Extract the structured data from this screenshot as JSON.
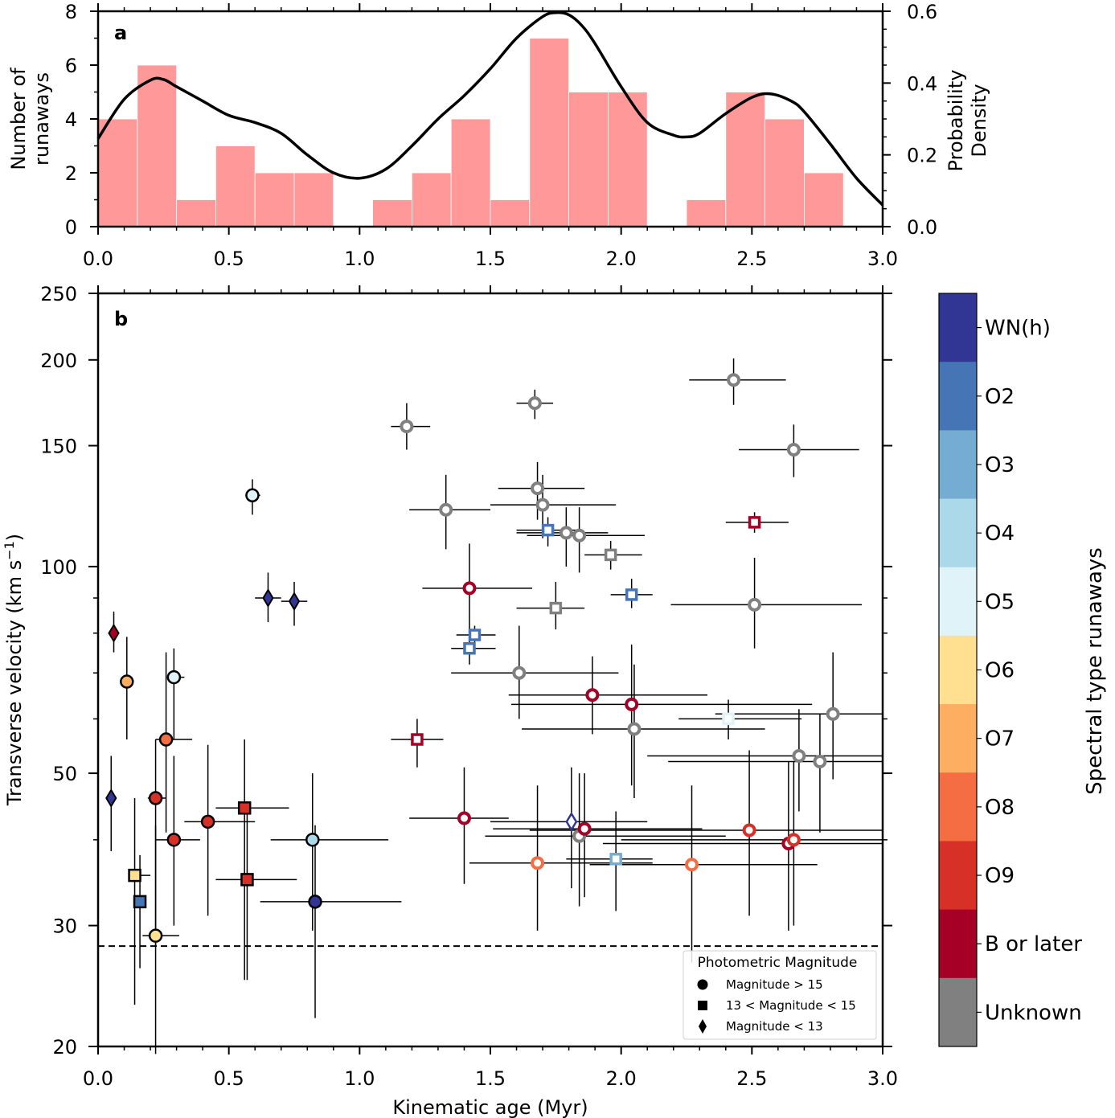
{
  "chart_data": [
    {
      "panel": "a",
      "type": "bar",
      "subtype": "histogram_with_kde",
      "panel_label": "a",
      "xlabel": "",
      "ylabel": "Number of\nrunaways",
      "ylabel_lines": [
        "Number of",
        "runaways"
      ],
      "y2label_lines": [
        "Probability",
        "Density"
      ],
      "xlim": [
        0.0,
        3.0
      ],
      "ylim": [
        0,
        8
      ],
      "y2lim": [
        0.0,
        0.6
      ],
      "xticks": [
        "0.0",
        "0.5",
        "1.0",
        "1.5",
        "2.0",
        "2.5",
        "3.0"
      ],
      "yticks": [
        "0",
        "2",
        "4",
        "6",
        "8"
      ],
      "y2ticks": [
        "0.0",
        "0.2",
        "0.4",
        "0.6"
      ],
      "bar_color": "#ff9999",
      "bin_width": 0.15,
      "bin_edges_start": 0.0,
      "counts": [
        4,
        6,
        1,
        3,
        2,
        2,
        0,
        1,
        2,
        4,
        1,
        7,
        5,
        5,
        0,
        1,
        5,
        4,
        2,
        0
      ],
      "kde": {
        "x": [
          0.0,
          0.1,
          0.2,
          0.25,
          0.3,
          0.4,
          0.5,
          0.6,
          0.7,
          0.8,
          0.9,
          1.0,
          1.1,
          1.2,
          1.3,
          1.4,
          1.5,
          1.6,
          1.7,
          1.75,
          1.8,
          1.85,
          1.9,
          2.0,
          2.1,
          2.2,
          2.25,
          2.3,
          2.4,
          2.5,
          2.57,
          2.65,
          2.7,
          2.8,
          2.9,
          3.0
        ],
        "density": [
          0.245,
          0.355,
          0.408,
          0.41,
          0.39,
          0.35,
          0.31,
          0.29,
          0.26,
          0.2,
          0.15,
          0.135,
          0.16,
          0.225,
          0.3,
          0.365,
          0.44,
          0.525,
          0.585,
          0.596,
          0.59,
          0.56,
          0.51,
          0.39,
          0.29,
          0.255,
          0.25,
          0.26,
          0.315,
          0.36,
          0.37,
          0.35,
          0.32,
          0.23,
          0.135,
          0.06
        ]
      }
    },
    {
      "panel": "b",
      "type": "scatter",
      "panel_label": "b",
      "xlabel": "Kinematic age (Myr)",
      "ylabel": "Transverse velocity (km s",
      "ylabel_sup": "−1",
      "ylabel_end": ")",
      "xlim": [
        0.0,
        3.0
      ],
      "ylim": [
        20,
        250
      ],
      "yscale": "log",
      "xticks": [
        "0.0",
        "0.5",
        "1.0",
        "1.5",
        "2.0",
        "2.5",
        "3.0"
      ],
      "yticks": [
        20,
        30,
        50,
        100,
        150,
        200,
        250
      ],
      "ytick_labels": [
        "20",
        "30",
        "50",
        "100",
        "150",
        "200",
        "250"
      ],
      "threshold_line": {
        "y": 28,
        "style": "dashed"
      },
      "legend": {
        "title": "Photometric Magnitude",
        "location": "lower-right",
        "entries": [
          {
            "marker": "circle",
            "label": "Magnitude > 15"
          },
          {
            "marker": "square",
            "label": "13 < Magnitude < 15"
          },
          {
            "marker": "diamond",
            "label": "Magnitude < 13"
          }
        ]
      },
      "colorbar": {
        "title": "Spectral type runaways",
        "categories": [
          {
            "label": "WN(h)",
            "color": "#313695"
          },
          {
            "label": "O2",
            "color": "#4575b4"
          },
          {
            "label": "O3",
            "color": "#74add1"
          },
          {
            "label": "O4",
            "color": "#abd9e9"
          },
          {
            "label": "O5",
            "color": "#e0f3f8"
          },
          {
            "label": "O6",
            "color": "#fee090"
          },
          {
            "label": "O7",
            "color": "#fdae61"
          },
          {
            "label": "O8",
            "color": "#f46d43"
          },
          {
            "label": "O9",
            "color": "#d73027"
          },
          {
            "label": "B or later",
            "color": "#a50026"
          },
          {
            "label": "Unknown",
            "color": "#808080"
          }
        ]
      },
      "note": "filled markers have black edges; hollow markers are colored-edge with white fill",
      "points": [
        {
          "x": 0.06,
          "y": 80,
          "xerr": [
            0.0,
            0.0
          ],
          "yerr": [
            75,
            86
          ],
          "marker": "diamond",
          "type": "B or later",
          "filled": true
        },
        {
          "x": 0.05,
          "y": 46,
          "xerr": [
            0.0,
            0.0
          ],
          "yerr": [
            38.5,
            53
          ],
          "marker": "diamond",
          "type": "WN(h)",
          "filled": true
        },
        {
          "x": 0.11,
          "y": 68,
          "xerr": [
            0.0,
            0.0
          ],
          "yerr": [
            56,
            79
          ],
          "marker": "circle",
          "type": "O7",
          "filled": true
        },
        {
          "x": 0.14,
          "y": 35.5,
          "xerr": [
            0.12,
            0.2
          ],
          "yerr": [
            23,
            46
          ],
          "marker": "square",
          "type": "O6",
          "filled": true
        },
        {
          "x": 0.16,
          "y": 32.5,
          "xerr": [
            0.15,
            0.18
          ],
          "yerr": [
            26,
            38
          ],
          "marker": "square",
          "type": "O2",
          "filled": true
        },
        {
          "x": 0.22,
          "y": 29,
          "xerr": [
            0.17,
            0.31
          ],
          "yerr": [
            19.5,
            42
          ],
          "marker": "circle",
          "type": "O6",
          "filled": true
        },
        {
          "x": 0.22,
          "y": 46,
          "xerr": [
            0.19,
            0.26
          ],
          "yerr": [
            28,
            56
          ],
          "marker": "circle",
          "type": "O9",
          "filled": true
        },
        {
          "x": 0.26,
          "y": 56,
          "xerr": [
            0.22,
            0.36
          ],
          "yerr": [
            41,
            75
          ],
          "marker": "circle",
          "type": "O8",
          "filled": true
        },
        {
          "x": 0.29,
          "y": 69,
          "xerr": [
            0.28,
            0.33
          ],
          "yerr": [
            56,
            76
          ],
          "marker": "circle",
          "type": "O5",
          "filled": true
        },
        {
          "x": 0.29,
          "y": 40,
          "xerr": [
            0.22,
            0.39
          ],
          "yerr": [
            30,
            53
          ],
          "marker": "circle",
          "type": "O9",
          "filled": true
        },
        {
          "x": 0.42,
          "y": 42.5,
          "xerr": [
            0.33,
            0.6
          ],
          "yerr": [
            31,
            55
          ],
          "marker": "circle",
          "type": "O9",
          "filled": true
        },
        {
          "x": 0.56,
          "y": 44.5,
          "xerr": [
            0.45,
            0.73
          ],
          "yerr": [
            25,
            56
          ],
          "marker": "square",
          "type": "O9",
          "filled": true
        },
        {
          "x": 0.57,
          "y": 35,
          "xerr": [
            0.45,
            0.76
          ],
          "yerr": [
            25,
            44
          ],
          "marker": "square",
          "type": "O9",
          "filled": true
        },
        {
          "x": 0.59,
          "y": 127,
          "xerr": [
            0.57,
            0.62
          ],
          "yerr": [
            119,
            134
          ],
          "marker": "circle",
          "type": "O5",
          "filled": true
        },
        {
          "x": 0.65,
          "y": 90,
          "xerr": [
            0.6,
            0.7
          ],
          "yerr": [
            83,
            98
          ],
          "marker": "diamond",
          "type": "WN(h)",
          "filled": true
        },
        {
          "x": 0.75,
          "y": 89,
          "xerr": [
            0.7,
            0.8
          ],
          "yerr": [
            82,
            95
          ],
          "marker": "diamond",
          "type": "WN(h)",
          "filled": true
        },
        {
          "x": 0.82,
          "y": 40,
          "xerr": [
            0.66,
            1.11
          ],
          "yerr": [
            29.5,
            50
          ],
          "marker": "circle",
          "type": "O4",
          "filled": true
        },
        {
          "x": 0.83,
          "y": 32.5,
          "xerr": [
            0.62,
            1.16
          ],
          "yerr": [
            22,
            42
          ],
          "marker": "circle",
          "type": "WN(h)",
          "filled": true
        },
        {
          "x": 1.18,
          "y": 160,
          "xerr": [
            1.12,
            1.27
          ],
          "yerr": [
            148,
            173
          ],
          "marker": "circle",
          "type": "Unknown",
          "filled": false
        },
        {
          "x": 1.22,
          "y": 56,
          "xerr": [
            1.12,
            1.32
          ],
          "yerr": [
            51,
            60
          ],
          "marker": "square",
          "type": "B or later",
          "filled": false
        },
        {
          "x": 1.33,
          "y": 121,
          "xerr": [
            1.19,
            1.5
          ],
          "yerr": [
            106,
            136
          ],
          "marker": "circle",
          "type": "Unknown",
          "filled": false
        },
        {
          "x": 1.4,
          "y": 43,
          "xerr": [
            1.19,
            1.57
          ],
          "yerr": [
            34.5,
            51
          ],
          "marker": "circle",
          "type": "B or later",
          "filled": false
        },
        {
          "x": 1.42,
          "y": 93,
          "xerr": [
            1.24,
            1.66
          ],
          "yerr": [
            78,
            108
          ],
          "marker": "circle",
          "type": "B or later",
          "filled": false
        },
        {
          "x": 1.42,
          "y": 76,
          "xerr": [
            1.35,
            1.52
          ],
          "yerr": [
            72,
            80
          ],
          "marker": "square",
          "type": "O2",
          "filled": false
        },
        {
          "x": 1.44,
          "y": 79.5,
          "xerr": [
            1.37,
            1.52
          ],
          "yerr": [
            76,
            82
          ],
          "marker": "square",
          "type": "O2",
          "filled": false
        },
        {
          "x": 1.61,
          "y": 70,
          "xerr": [
            1.35,
            1.99
          ],
          "yerr": [
            60,
            82
          ],
          "marker": "circle",
          "type": "Unknown",
          "filled": false
        },
        {
          "x": 1.67,
          "y": 173,
          "xerr": [
            1.6,
            1.74
          ],
          "yerr": [
            164,
            181
          ],
          "marker": "circle",
          "type": "Unknown",
          "filled": false
        },
        {
          "x": 1.68,
          "y": 37,
          "xerr": [
            1.42,
            2.12
          ],
          "yerr": [
            29.5,
            48
          ],
          "marker": "circle",
          "type": "O8",
          "filled": false
        },
        {
          "x": 1.68,
          "y": 130,
          "xerr": [
            1.53,
            1.86
          ],
          "yerr": [
            117,
            142
          ],
          "marker": "circle",
          "type": "Unknown",
          "filled": false
        },
        {
          "x": 1.7,
          "y": 123,
          "xerr": [
            1.5,
            1.98
          ],
          "yerr": [
            110,
            136
          ],
          "marker": "circle",
          "type": "Unknown",
          "filled": false
        },
        {
          "x": 1.72,
          "y": 113,
          "xerr": [
            1.6,
            1.85
          ],
          "yerr": [
            107,
            118
          ],
          "marker": "square",
          "type": "O2",
          "filled": false
        },
        {
          "x": 1.75,
          "y": 87,
          "xerr": [
            1.6,
            1.86
          ],
          "yerr": [
            81,
            95
          ],
          "marker": "square",
          "type": "Unknown",
          "filled": false
        },
        {
          "x": 1.79,
          "y": 112,
          "xerr": [
            1.6,
            1.95
          ],
          "yerr": [
            100,
            122
          ],
          "marker": "circle",
          "type": "Unknown",
          "filled": false
        },
        {
          "x": 1.81,
          "y": 42.5,
          "xerr": [
            1.5,
            2.1
          ],
          "yerr": [
            34,
            51
          ],
          "marker": "diamond",
          "type": "WN(h)",
          "filled": false
        },
        {
          "x": 1.84,
          "y": 111,
          "xerr": [
            1.64,
            2.09
          ],
          "yerr": [
            98,
            122
          ],
          "marker": "circle",
          "type": "Unknown",
          "filled": false
        },
        {
          "x": 1.84,
          "y": 40.5,
          "xerr": [
            1.48,
            2.4
          ],
          "yerr": [
            32,
            50
          ],
          "marker": "circle",
          "type": "Unknown",
          "filled": false
        },
        {
          "x": 1.86,
          "y": 41.5,
          "xerr": [
            1.51,
            2.31
          ],
          "yerr": [
            33,
            50
          ],
          "marker": "circle",
          "type": "B or later",
          "filled": false
        },
        {
          "x": 1.89,
          "y": 65,
          "xerr": [
            1.57,
            2.33
          ],
          "yerr": [
            57,
            74
          ],
          "marker": "circle",
          "type": "B or later",
          "filled": false
        },
        {
          "x": 1.96,
          "y": 104,
          "xerr": [
            1.86,
            2.08
          ],
          "yerr": [
            99,
            109
          ],
          "marker": "square",
          "type": "Unknown",
          "filled": false
        },
        {
          "x": 1.98,
          "y": 37.5,
          "xerr": [
            1.79,
            2.12
          ],
          "yerr": [
            31.5,
            44
          ],
          "marker": "square",
          "type": "O3",
          "filled": false
        },
        {
          "x": 2.04,
          "y": 91,
          "xerr": [
            1.96,
            2.12
          ],
          "yerr": [
            87,
            96
          ],
          "marker": "square",
          "type": "O2",
          "filled": false
        },
        {
          "x": 2.04,
          "y": 63,
          "xerr": [
            1.58,
            2.73
          ],
          "yerr": [
            48,
            77
          ],
          "marker": "circle",
          "type": "B or later",
          "filled": false
        },
        {
          "x": 2.05,
          "y": 58,
          "xerr": [
            1.62,
            2.55
          ],
          "yerr": [
            46,
            72
          ],
          "marker": "circle",
          "type": "Unknown",
          "filled": false
        },
        {
          "x": 2.27,
          "y": 36.8,
          "xerr": [
            1.88,
            2.75
          ],
          "yerr": [
            26.5,
            48
          ],
          "marker": "circle",
          "type": "O8",
          "filled": false
        },
        {
          "x": 2.41,
          "y": 60,
          "xerr": [
            2.22,
            2.69
          ],
          "yerr": [
            56,
            64
          ],
          "marker": "square",
          "type": "O5",
          "filled": false
        },
        {
          "x": 2.43,
          "y": 187,
          "xerr": [
            2.26,
            2.63
          ],
          "yerr": [
            172,
            201
          ],
          "marker": "circle",
          "type": "Unknown",
          "filled": false
        },
        {
          "x": 2.49,
          "y": 41.3,
          "xerr": [
            1.65,
            3.0
          ],
          "yerr": [
            31,
            54
          ],
          "marker": "circle",
          "type": "O9",
          "filled": false
        },
        {
          "x": 2.51,
          "y": 116,
          "xerr": [
            2.4,
            2.64
          ],
          "yerr": [
            112,
            120
          ],
          "marker": "square",
          "type": "B or later",
          "filled": false
        },
        {
          "x": 2.51,
          "y": 88,
          "xerr": [
            2.19,
            2.92
          ],
          "yerr": [
            76,
            103
          ],
          "marker": "circle",
          "type": "Unknown",
          "filled": false
        },
        {
          "x": 2.64,
          "y": 39.5,
          "xerr": [
            1.93,
            3.0
          ],
          "yerr": [
            29.5,
            52
          ],
          "marker": "circle",
          "type": "B or later",
          "filled": false
        },
        {
          "x": 2.66,
          "y": 40,
          "xerr": [
            2.0,
            3.0
          ],
          "yerr": [
            30,
            52
          ],
          "marker": "circle",
          "type": "O9",
          "filled": false
        },
        {
          "x": 2.66,
          "y": 148,
          "xerr": [
            2.45,
            2.91
          ],
          "yerr": [
            135,
            161
          ],
          "marker": "circle",
          "type": "Unknown",
          "filled": false
        },
        {
          "x": 2.68,
          "y": 53,
          "xerr": [
            2.1,
            3.0
          ],
          "yerr": [
            44,
            62
          ],
          "marker": "circle",
          "type": "Unknown",
          "filled": false
        },
        {
          "x": 2.76,
          "y": 52,
          "xerr": [
            2.18,
            3.0
          ],
          "yerr": [
            41,
            61
          ],
          "marker": "circle",
          "type": "Unknown",
          "filled": false
        },
        {
          "x": 2.81,
          "y": 61,
          "xerr": [
            2.36,
            3.0
          ],
          "yerr": [
            49,
            75
          ],
          "marker": "circle",
          "type": "Unknown",
          "filled": false
        }
      ]
    }
  ]
}
